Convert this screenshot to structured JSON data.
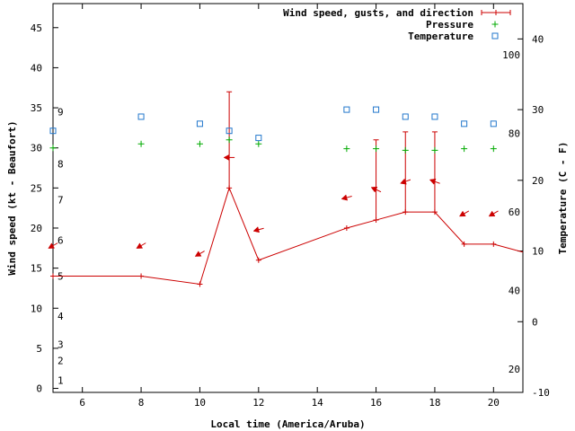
{
  "chart_data": {
    "type": "line",
    "xlabel": "Local time (America/Aruba)",
    "ylabel_left": "Wind speed (kt - Beaufort)",
    "ylabel_right": "Temperature (C - F)",
    "xlim": [
      5,
      21
    ],
    "ylim_left": [
      -0.5,
      48
    ],
    "ylim_right": [
      -10,
      45
    ],
    "x_ticks": [
      6,
      8,
      10,
      12,
      14,
      16,
      18,
      20
    ],
    "y_left_ticks": [
      0,
      5,
      10,
      15,
      20,
      25,
      30,
      35,
      40,
      45
    ],
    "y_right_ticks": [
      -10,
      0,
      10,
      20,
      30,
      40
    ],
    "beaufort_scale": [
      {
        "label": "1",
        "kt": 1
      },
      {
        "label": "2",
        "kt": 3.5
      },
      {
        "label": "3",
        "kt": 5.5
      },
      {
        "label": "4",
        "kt": 9
      },
      {
        "label": "5",
        "kt": 14
      },
      {
        "label": "6",
        "kt": 18.5
      },
      {
        "label": "7",
        "kt": 23.5
      },
      {
        "label": "8",
        "kt": 28
      },
      {
        "label": "9",
        "kt": 34.5
      }
    ],
    "fahrenheit_scale": [
      {
        "label": "20",
        "f": 20
      },
      {
        "label": "40",
        "f": 40
      },
      {
        "label": "60",
        "f": 60
      },
      {
        "label": "80",
        "f": 80
      },
      {
        "label": "100",
        "f": 100
      }
    ],
    "legend": {
      "position": "top-right",
      "entries": [
        "Wind speed, gusts, and direction",
        "Pressure",
        "Temperature"
      ]
    },
    "series": [
      {
        "name": "Wind speed, gusts, and direction",
        "color": "#cc0000",
        "points": [
          {
            "x": 5,
            "speed": 14,
            "gust": null,
            "dir_deg": 60
          },
          {
            "x": 8,
            "speed": 14,
            "gust": null,
            "dir_deg": 60
          },
          {
            "x": 10,
            "speed": 13,
            "gust": null,
            "dir_deg": 60
          },
          {
            "x": 11,
            "speed": 25,
            "gust": 37,
            "dir_deg": 90
          },
          {
            "x": 12,
            "speed": 16,
            "gust": null,
            "dir_deg": 75
          },
          {
            "x": 15,
            "speed": 20,
            "gust": null,
            "dir_deg": 75
          },
          {
            "x": 16,
            "speed": 21,
            "gust": 31,
            "dir_deg": 115
          },
          {
            "x": 17,
            "speed": 22,
            "gust": 32,
            "dir_deg": 70
          },
          {
            "x": 18,
            "speed": 22,
            "gust": 32,
            "dir_deg": 110
          },
          {
            "x": 19,
            "speed": 18,
            "gust": null,
            "dir_deg": 60
          },
          {
            "x": 20,
            "speed": 18,
            "gust": null,
            "dir_deg": 60
          },
          {
            "x": 21,
            "speed": 17,
            "gust": null,
            "dir_deg": null
          }
        ]
      },
      {
        "name": "Pressure",
        "color": "#00aa00",
        "points": [
          {
            "x": 5,
            "y": 30
          },
          {
            "x": 8,
            "y": 30.5
          },
          {
            "x": 10,
            "y": 30.5
          },
          {
            "x": 11,
            "y": 31
          },
          {
            "x": 12,
            "y": 30.5
          },
          {
            "x": 15,
            "y": 29.9
          },
          {
            "x": 16,
            "y": 29.9
          },
          {
            "x": 17,
            "y": 29.7
          },
          {
            "x": 18,
            "y": 29.7
          },
          {
            "x": 19,
            "y": 29.9
          },
          {
            "x": 20,
            "y": 29.9
          }
        ]
      },
      {
        "name": "Temperature",
        "color": "#2277cc",
        "unit": "C",
        "points": [
          {
            "x": 5,
            "y": 27
          },
          {
            "x": 8,
            "y": 29
          },
          {
            "x": 10,
            "y": 28
          },
          {
            "x": 11,
            "y": 27
          },
          {
            "x": 12,
            "y": 26
          },
          {
            "x": 15,
            "y": 30
          },
          {
            "x": 16,
            "y": 30
          },
          {
            "x": 17,
            "y": 29
          },
          {
            "x": 18,
            "y": 29
          },
          {
            "x": 19,
            "y": 28
          },
          {
            "x": 20,
            "y": 28
          }
        ]
      }
    ]
  }
}
